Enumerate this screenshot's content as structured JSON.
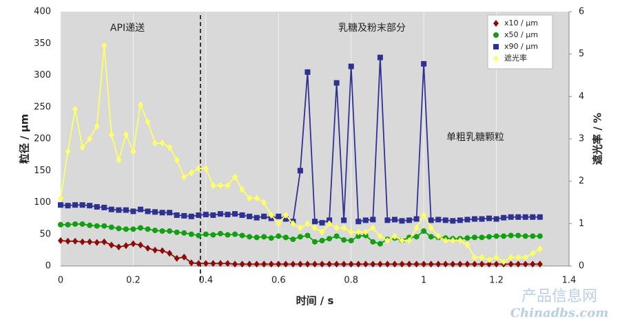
{
  "chart_data": {
    "type": "line",
    "x_label": "时间 / s",
    "y_label": "粒径 / μm",
    "y2_label": "遮光率 / %",
    "annotations": [
      "API递送",
      "乳糖及粉末部分",
      "单粗乳糖颗粒"
    ],
    "divider_x": 0.385,
    "xlim": [
      0,
      1.4
    ],
    "xticks": [
      0,
      0.2,
      0.4,
      0.6,
      0.8,
      1,
      1.2,
      1.4
    ],
    "ylim": [
      0,
      400
    ],
    "yticks": [
      0,
      50,
      100,
      150,
      200,
      250,
      300,
      350,
      400
    ],
    "y2lim": [
      0,
      6
    ],
    "y2ticks": [
      0,
      1,
      2,
      3,
      4,
      5,
      6
    ],
    "grid": true,
    "legend": "top-right",
    "x": [
      0,
      0.02,
      0.04,
      0.06,
      0.08,
      0.1,
      0.12,
      0.14,
      0.16,
      0.18,
      0.2,
      0.22,
      0.24,
      0.26,
      0.28,
      0.3,
      0.32,
      0.34,
      0.36,
      0.38,
      0.4,
      0.42,
      0.44,
      0.46,
      0.48,
      0.5,
      0.52,
      0.54,
      0.56,
      0.58,
      0.6,
      0.62,
      0.64,
      0.66,
      0.68,
      0.7,
      0.72,
      0.74,
      0.76,
      0.78,
      0.8,
      0.82,
      0.84,
      0.86,
      0.88,
      0.9,
      0.92,
      0.94,
      0.96,
      0.98,
      1,
      1.02,
      1.04,
      1.06,
      1.08,
      1.1,
      1.12,
      1.14,
      1.16,
      1.18,
      1.2,
      1.22,
      1.24,
      1.26,
      1.28,
      1.3,
      1.32
    ],
    "series": [
      {
        "name": "x10 / μm",
        "color": "#8b0a0a",
        "marker": "diamond",
        "values": [
          40,
          39,
          39,
          38,
          38,
          37,
          38,
          33,
          30,
          32,
          35,
          33,
          28,
          25,
          24,
          20,
          12,
          14,
          5,
          4,
          4,
          4,
          4,
          4,
          3,
          3,
          3,
          3,
          3,
          3,
          3,
          3,
          3,
          3,
          3,
          3,
          3,
          3,
          3,
          3,
          3,
          3,
          3,
          3,
          3,
          3,
          3,
          3,
          3,
          3,
          3,
          3,
          3,
          3,
          3,
          3,
          3,
          3,
          3,
          3,
          3,
          3,
          3,
          3,
          3,
          3,
          3
        ]
      },
      {
        "name": "x50 / μm",
        "color": "#10a010",
        "marker": "circle",
        "values": [
          65,
          65,
          66,
          66,
          64,
          63,
          63,
          61,
          59,
          58,
          58,
          60,
          58,
          56,
          55,
          55,
          53,
          52,
          50,
          48,
          50,
          49,
          51,
          49,
          50,
          48,
          46,
          45,
          46,
          44,
          47,
          45,
          42,
          46,
          48,
          38,
          40,
          43,
          47,
          41,
          40,
          47,
          48,
          38,
          35,
          42,
          44,
          40,
          45,
          46,
          55,
          46,
          45,
          44,
          43,
          43,
          44,
          45,
          45,
          46,
          47,
          47,
          48,
          48,
          47,
          47,
          47
        ]
      },
      {
        "name": "x90 / μm",
        "color": "#2e3192",
        "marker": "square",
        "values": [
          96,
          95,
          96,
          96,
          95,
          93,
          92,
          89,
          88,
          88,
          86,
          89,
          86,
          85,
          84,
          84,
          80,
          79,
          78,
          80,
          81,
          80,
          82,
          81,
          82,
          80,
          78,
          76,
          78,
          75,
          78,
          74,
          70,
          150,
          305,
          70,
          68,
          72,
          288,
          72,
          314,
          70,
          72,
          73,
          328,
          72,
          73,
          71,
          72,
          74,
          318,
          72,
          73,
          72,
          71,
          72,
          73,
          74,
          74,
          75,
          74,
          76,
          77,
          77,
          77,
          77,
          77
        ]
      },
      {
        "name": "遮光率",
        "color": "#ffff66",
        "marker": "diamond",
        "axis": "y2",
        "values": [
          1.6,
          2.7,
          3.7,
          2.8,
          3.0,
          3.3,
          5.2,
          3.1,
          2.5,
          3.1,
          2.7,
          3.8,
          3.4,
          2.9,
          2.9,
          2.8,
          2.5,
          2.1,
          2.2,
          2.3,
          2.3,
          1.9,
          1.9,
          1.9,
          2.1,
          1.8,
          1.6,
          1.6,
          1.5,
          1.2,
          1.0,
          1.2,
          1.0,
          0.9,
          1.0,
          0.9,
          0.8,
          1.0,
          0.9,
          0.9,
          0.8,
          0.8,
          0.8,
          0.9,
          0.7,
          0.6,
          0.7,
          0.6,
          0.6,
          0.9,
          1.2,
          0.9,
          0.7,
          0.6,
          0.6,
          0.6,
          0.5,
          0.2,
          0.2,
          0.15,
          0.2,
          0.1,
          0.2,
          0.2,
          0.2,
          0.3,
          0.4
        ]
      }
    ]
  },
  "watermark": {
    "cn": "产品信息网",
    "en": "Chinadbs.com"
  }
}
